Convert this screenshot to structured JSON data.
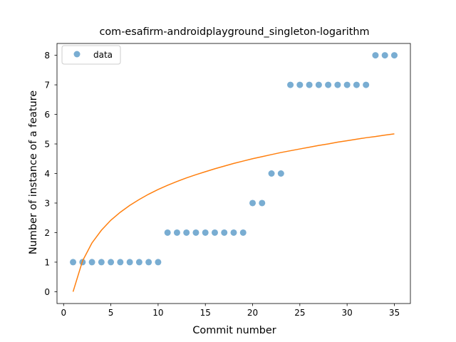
{
  "chart_data": {
    "type": "scatter",
    "title": "com-esafirm-androidplayground_singleton-logarithm",
    "xlabel": "Commit number",
    "ylabel": "Number of instance of a feature",
    "xlim": [
      -0.7,
      36.7
    ],
    "ylim": [
      -0.4,
      8.4
    ],
    "xticks": [
      0,
      5,
      10,
      15,
      20,
      25,
      30,
      35
    ],
    "yticks": [
      0,
      1,
      2,
      3,
      4,
      5,
      6,
      7,
      8
    ],
    "grid": false,
    "legend": {
      "placement": "top-left",
      "entries": [
        "data"
      ]
    },
    "series": [
      {
        "name": "data",
        "kind": "scatter",
        "color": "#1f77b4",
        "x": [
          1,
          2,
          3,
          4,
          5,
          6,
          7,
          8,
          9,
          10,
          11,
          12,
          13,
          14,
          15,
          16,
          17,
          18,
          19,
          20,
          21,
          22,
          23,
          24,
          25,
          26,
          27,
          28,
          29,
          30,
          31,
          32,
          33,
          34,
          35
        ],
        "y": [
          1,
          1,
          1,
          1,
          1,
          1,
          1,
          1,
          1,
          1,
          2,
          2,
          2,
          2,
          2,
          2,
          2,
          2,
          2,
          3,
          3,
          4,
          4,
          7,
          7,
          7,
          7,
          7,
          7,
          7,
          7,
          7,
          8,
          8,
          8
        ]
      },
      {
        "kind": "line",
        "color": "#ff7f0e",
        "x": [
          1,
          2,
          3,
          4,
          5,
          6,
          7,
          8,
          9,
          10,
          11,
          12,
          13,
          14,
          15,
          16,
          17,
          18,
          19,
          20,
          21,
          22,
          23,
          24,
          25,
          26,
          27,
          28,
          29,
          30,
          31,
          32,
          33,
          34,
          35
        ],
        "y": [
          0.0,
          1.04,
          1.65,
          2.08,
          2.42,
          2.69,
          2.92,
          3.12,
          3.3,
          3.46,
          3.6,
          3.73,
          3.85,
          3.96,
          4.06,
          4.16,
          4.25,
          4.34,
          4.42,
          4.5,
          4.57,
          4.64,
          4.71,
          4.77,
          4.83,
          4.89,
          4.95,
          5.0,
          5.06,
          5.11,
          5.16,
          5.21,
          5.25,
          5.3,
          5.34
        ]
      }
    ]
  }
}
